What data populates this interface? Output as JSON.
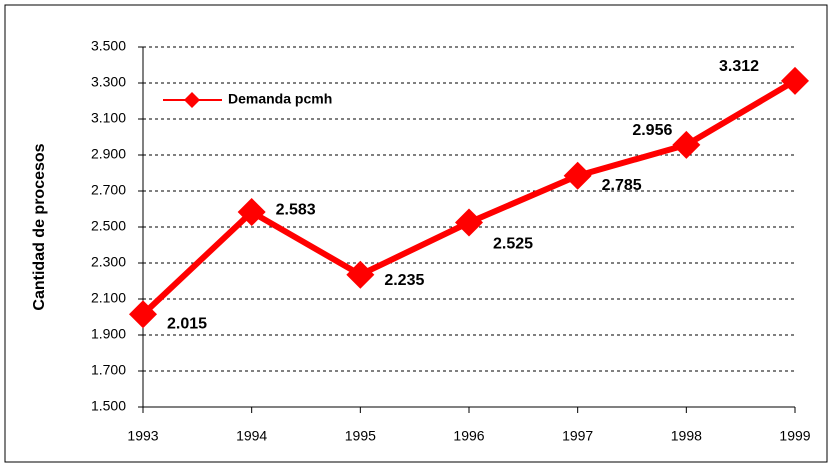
{
  "chart_data": {
    "type": "line",
    "y_label": "Cantidad de procesos",
    "x": [
      1993,
      1994,
      1995,
      1996,
      1997,
      1998,
      1999
    ],
    "series": [
      {
        "name": "Demanda pcmh",
        "color": "#ff0000",
        "values": [
          2015,
          2583,
          2235,
          2525,
          2785,
          2956,
          3312
        ],
        "value_labels": [
          "2.015",
          "2.583",
          "2.235",
          "2.525",
          "2.785",
          "2.956",
          "3.312"
        ]
      }
    ],
    "xlim": [
      1993,
      1999
    ],
    "xticks": [
      1993,
      1994,
      1995,
      1996,
      1997,
      1998,
      1999
    ],
    "ylim": [
      1500,
      3500
    ],
    "yticks": [
      {
        "value": 1500,
        "label": "1.500"
      },
      {
        "value": 1700,
        "label": "1.700"
      },
      {
        "value": 1900,
        "label": "1.900"
      },
      {
        "value": 2100,
        "label": "2.100"
      },
      {
        "value": 2300,
        "label": "2.300"
      },
      {
        "value": 2500,
        "label": "2.500"
      },
      {
        "value": 2700,
        "label": "2.700"
      },
      {
        "value": 2900,
        "label": "2.900"
      },
      {
        "value": 3100,
        "label": "3.100"
      },
      {
        "value": 3300,
        "label": "3.300"
      },
      {
        "value": 3500,
        "label": "3.500"
      }
    ],
    "grid": true,
    "legend": "upper left"
  }
}
